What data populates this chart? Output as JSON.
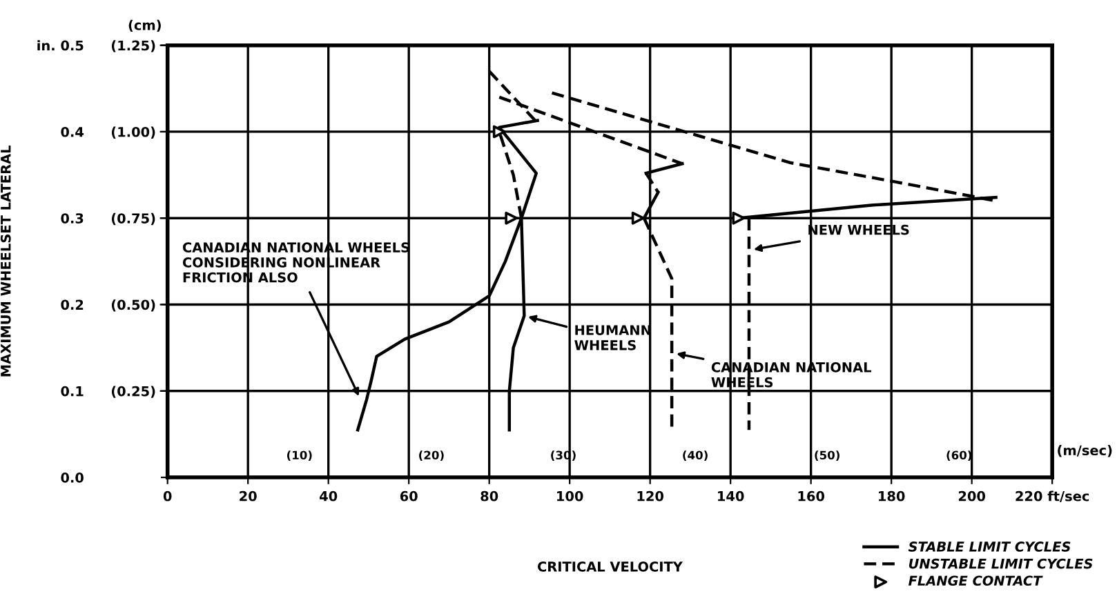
{
  "chart_data": {
    "type": "line",
    "xlabel": "CRITICAL VELOCITY",
    "ylabel": "MAXIMUM WHEELSET LATERAL",
    "y2label": "(cm)",
    "x2label": "(m/sec)",
    "xlim": [
      0,
      220
    ],
    "ylim": [
      0,
      0.5
    ],
    "y2lim": [
      0,
      1.25
    ],
    "x2lim": [
      0,
      67.06
    ],
    "xticks": [
      0,
      20,
      40,
      60,
      80,
      100,
      120,
      140,
      160,
      180,
      200,
      {
        "value": 220,
        "label": "220 ft/sec"
      }
    ],
    "yticks": [
      {
        "value": 0.0,
        "label": "0.0"
      },
      0.1,
      0.2,
      0.3,
      0.4,
      {
        "value": 0.5,
        "label": "in. 0.5"
      }
    ],
    "y2ticks": [
      {
        "value": 0.25,
        "label": "(0.25)"
      },
      {
        "value": 0.5,
        "label": "(0.50)"
      },
      {
        "value": 0.75,
        "label": "(0.75)"
      },
      {
        "value": 1.0,
        "label": "(1.00)"
      },
      {
        "value": 1.25,
        "label": "(1.25)"
      }
    ],
    "x2ticks": [
      {
        "value": 10,
        "label": "(10)"
      },
      {
        "value": 20,
        "label": "(20)"
      },
      {
        "value": 30,
        "label": "(30)"
      },
      {
        "value": 40,
        "label": "(40)"
      },
      {
        "value": 50,
        "label": "(50)"
      },
      {
        "value": 60,
        "label": "(60)"
      }
    ],
    "grid": true,
    "legend": "bottom right",
    "series": [
      {
        "name": "STABLE LIMIT CYCLES",
        "color": "#000000",
        "line_style": "solid",
        "marker": "none",
        "x": [
          47.3,
          49.5,
          50.6,
          52,
          59,
          70,
          80,
          84,
          88,
          91.7,
          82.5,
          92
        ],
        "values": [
          0.055,
          0.09,
          0.111,
          0.14,
          0.16,
          0.18,
          0.21,
          0.25,
          0.3,
          0.352,
          0.405,
          0.413
        ]
      },
      {
        "color": "#000000",
        "line_style": "solid",
        "marker": "none",
        "x": [
          85,
          85,
          86,
          88.7,
          88
        ],
        "values": [
          0.055,
          0.1,
          0.15,
          0.187,
          0.3
        ]
      },
      {
        "color": "#000000",
        "line_style": "solid",
        "marker": "none",
        "x": [
          128,
          119
        ],
        "values": [
          0.363,
          0.352
        ]
      },
      {
        "color": "#000000",
        "line_style": "solid",
        "marker": "none",
        "x": [
          122,
          118.5
        ],
        "values": [
          0.33,
          0.3
        ]
      },
      {
        "color": "#000000",
        "line_style": "solid",
        "marker": "none",
        "x": [
          142,
          175,
          206
        ],
        "values": [
          0.3,
          0.315,
          0.324
        ]
      },
      {
        "name": "UNSTABLE LIMIT CYCLES",
        "color": "#000000",
        "line_style": "dashed",
        "marker": "none",
        "x": [
          80,
          92
        ],
        "values": [
          0.47,
          0.41
        ]
      },
      {
        "color": "#000000",
        "line_style": "dashed",
        "marker": "none",
        "x": [
          82.5,
          128
        ],
        "values": [
          0.44,
          0.363
        ]
      },
      {
        "color": "#000000",
        "line_style": "dashed",
        "marker": "none",
        "x": [
          95.6,
          155,
          181,
          206
        ],
        "values": [
          0.445,
          0.364,
          0.342,
          0.32
        ]
      },
      {
        "color": "#000000",
        "line_style": "dashed",
        "marker": "none",
        "x": [
          88,
          86,
          82.5
        ],
        "values": [
          0.3,
          0.35,
          0.4
        ]
      },
      {
        "color": "#000000",
        "line_style": "dashed",
        "marker": "none",
        "x": [
          119,
          122
        ],
        "values": [
          0.352,
          0.33
        ]
      },
      {
        "color": "#000000",
        "line_style": "dashed",
        "marker": "none",
        "x": [
          118.5,
          125.4,
          125.4
        ],
        "values": [
          0.3,
          0.23,
          0.055
        ]
      },
      {
        "color": "#000000",
        "line_style": "dashed",
        "marker": "none",
        "x": [
          144.6,
          144.6
        ],
        "values": [
          0.3,
          0.055
        ]
      },
      {
        "name": "FLANGE CONTACT",
        "type": "scatter",
        "color": "#000000",
        "marker": "triangle",
        "x": [
          85.5,
          117,
          142,
          82.5
        ],
        "values": [
          0.3,
          0.3,
          0.3,
          0.4
        ]
      }
    ],
    "annotations": [
      {
        "text": "CANADIAN NATIONAL WHEELS\nCONSIDERING NONLINEAR\nFRICTION ALSO",
        "x": 48,
        "y": 0.09
      },
      {
        "text": "HEUMANN\nWHEELS",
        "x": 88.7,
        "y": 0.187
      },
      {
        "text": "CANADIAN NATIONAL\nWHEELS",
        "x": 125.6,
        "y": 0.144
      },
      {
        "text": "NEW WHEELS",
        "x": 144.8,
        "y": 0.263
      }
    ]
  }
}
